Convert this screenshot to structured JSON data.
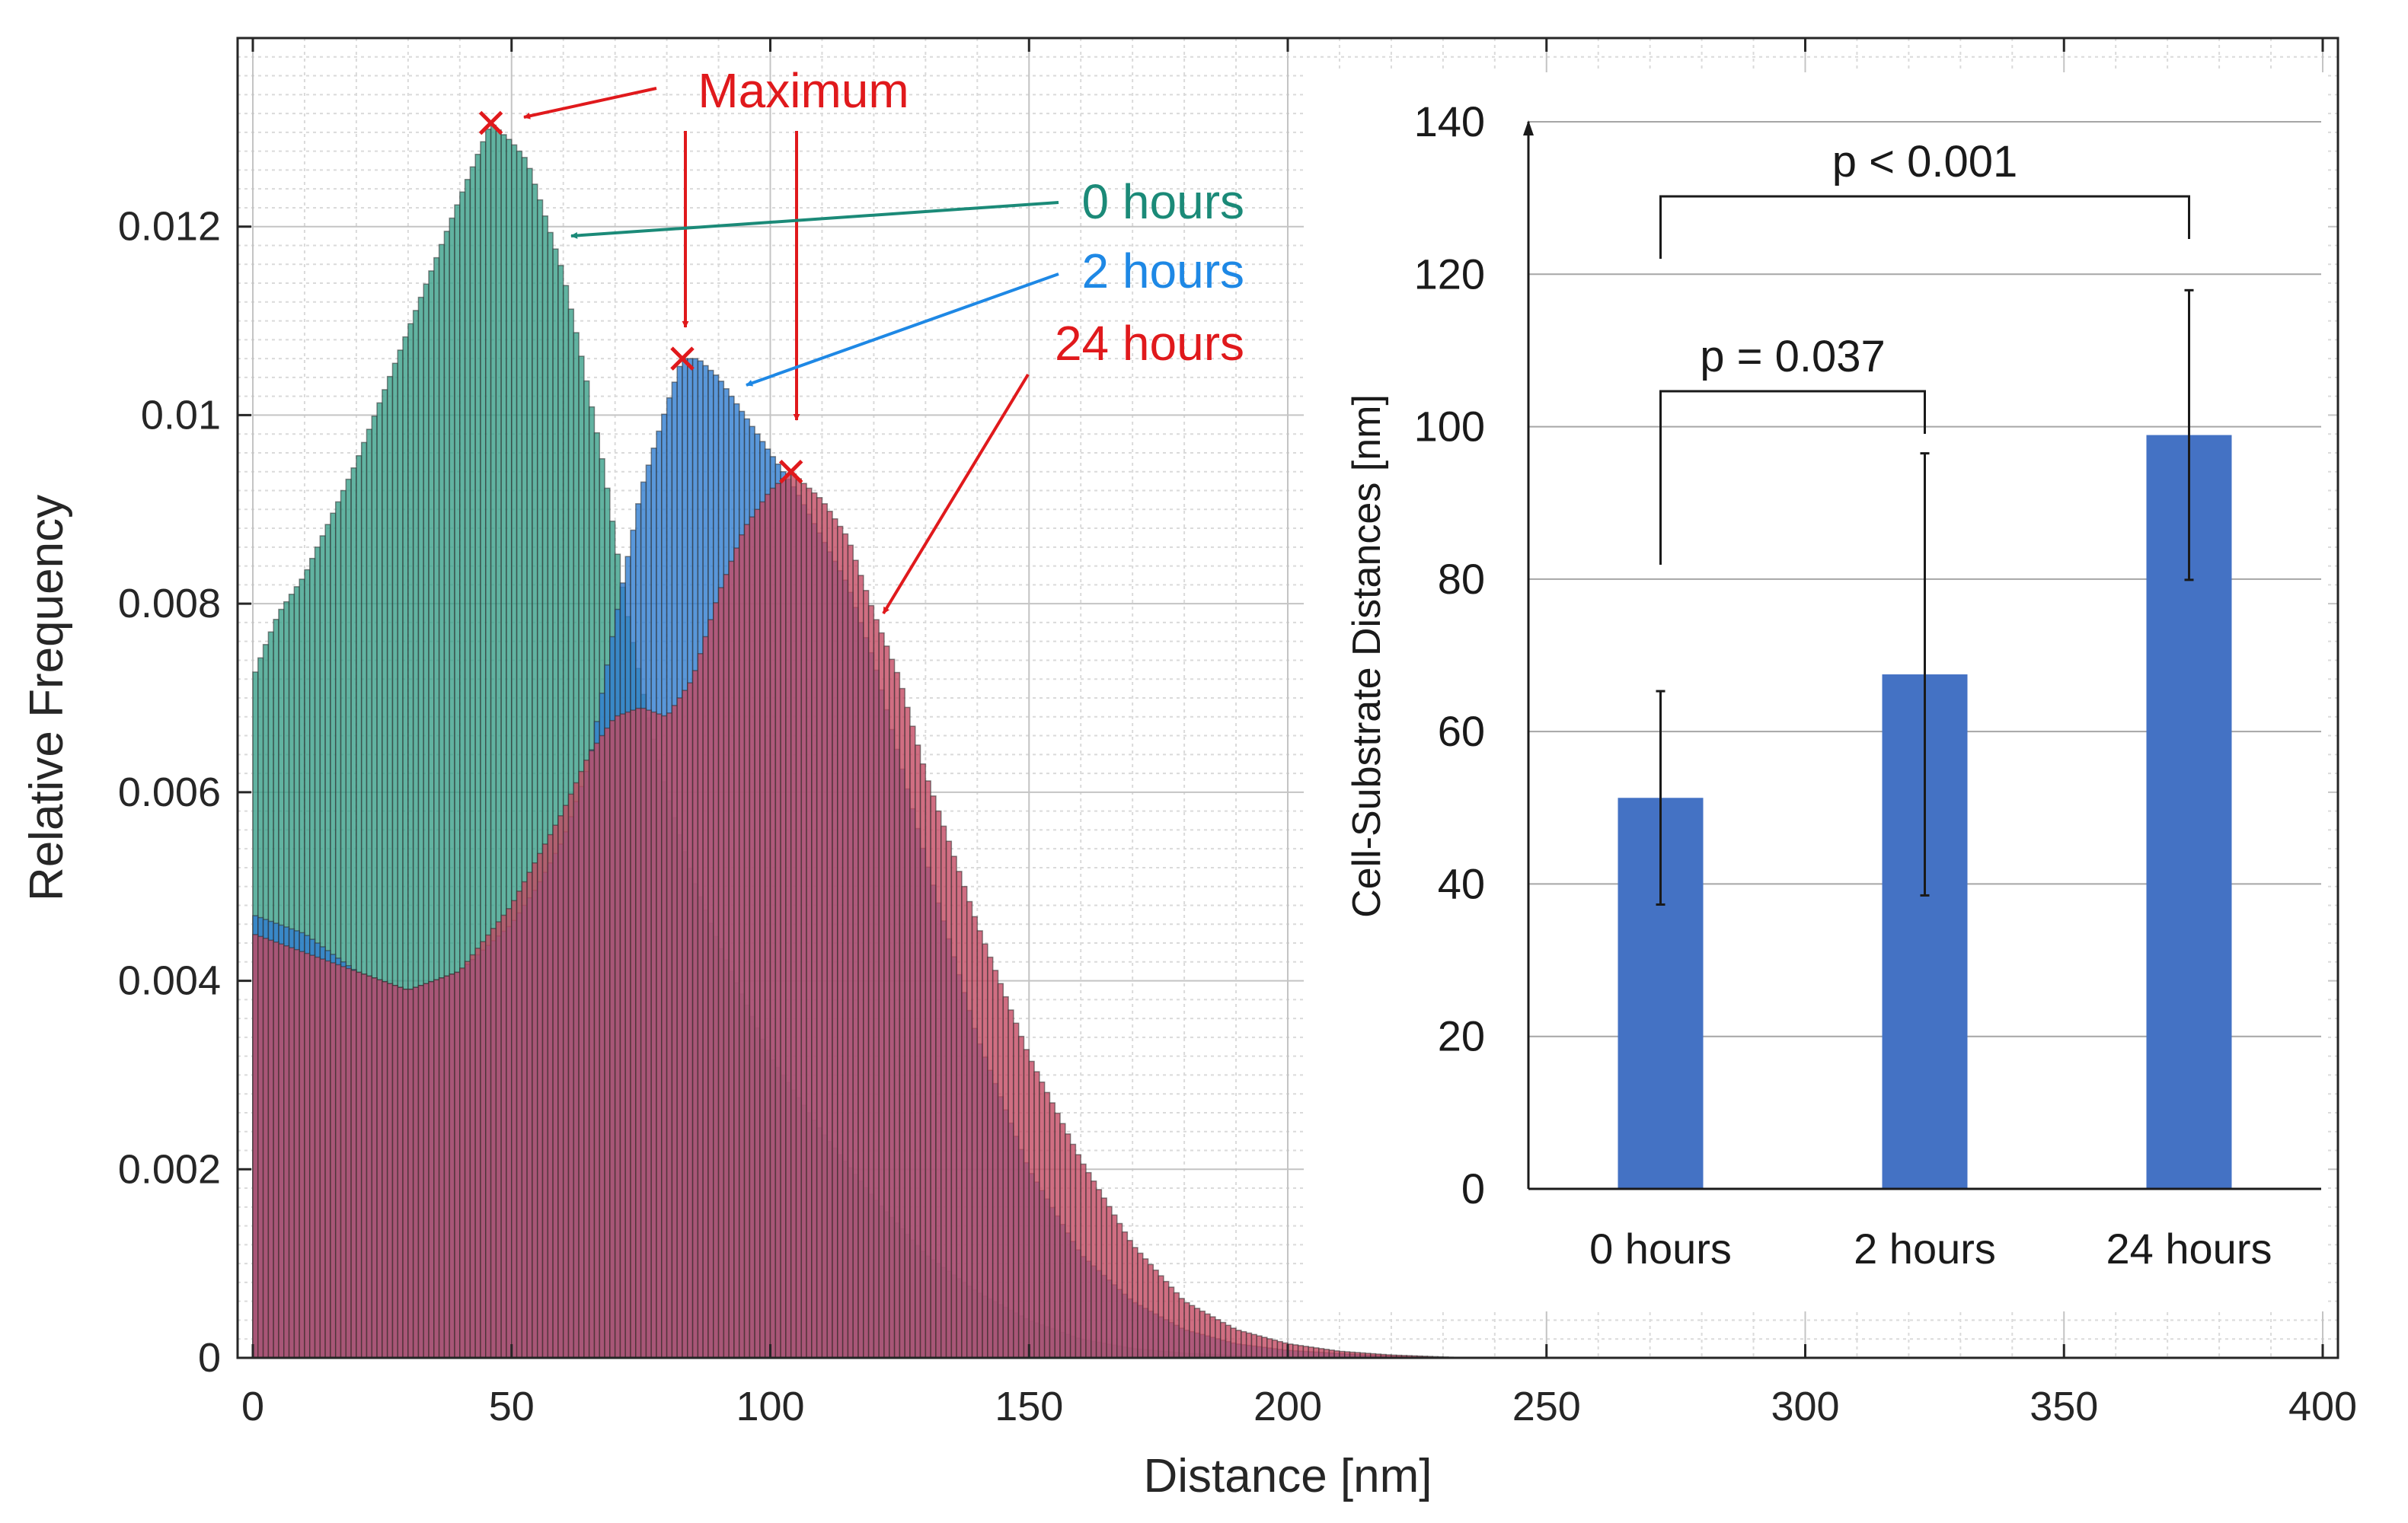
{
  "main_chart": {
    "chart_data": {
      "type": "bar",
      "subtype": "overlaid histogram",
      "xlabel": "Distance [nm]",
      "ylabel": "Relative Frequency",
      "xlim": [
        0,
        400
      ],
      "ylim": [
        0,
        0.014
      ],
      "xticks": [
        "0",
        "50",
        "100",
        "150",
        "200",
        "250",
        "300",
        "350",
        "400"
      ],
      "yticks": [
        "0",
        "0.002",
        "0.004",
        "0.006",
        "0.008",
        "0.01",
        "0.012"
      ],
      "grid": true,
      "bin_width_nm": 1,
      "series": [
        {
          "name": "0 hours",
          "color": "#3aa08a",
          "points": [
            [
              0,
              0.0072
            ],
            [
              2,
              0.0075
            ],
            [
              5,
              0.0079
            ],
            [
              10,
              0.0083
            ],
            [
              15,
              0.0089
            ],
            [
              20,
              0.0095
            ],
            [
              25,
              0.0102
            ],
            [
              30,
              0.0109
            ],
            [
              35,
              0.0116
            ],
            [
              40,
              0.0123
            ],
            [
              43,
              0.0127
            ],
            [
              46,
              0.0131
            ],
            [
              50,
              0.0129
            ],
            [
              53,
              0.0127
            ],
            [
              56,
              0.0122
            ],
            [
              60,
              0.0115
            ],
            [
              64,
              0.0105
            ],
            [
              68,
              0.0094
            ],
            [
              72,
              0.008
            ],
            [
              76,
              0.0069
            ],
            [
              80,
              0.006
            ],
            [
              85,
              0.0051
            ],
            [
              90,
              0.0044
            ],
            [
              95,
              0.0038
            ],
            [
              100,
              0.0032
            ],
            [
              110,
              0.0024
            ],
            [
              120,
              0.0017
            ],
            [
              130,
              0.0011
            ],
            [
              140,
              0.0007
            ],
            [
              150,
              0.0004
            ],
            [
              160,
              0.0002
            ],
            [
              170,
              0.0001
            ],
            [
              180,
              5e-05
            ],
            [
              200,
              0.0
            ]
          ]
        },
        {
          "name": "2 hours",
          "color": "#2f7dd1",
          "points": [
            [
              0,
              0.0047
            ],
            [
              5,
              0.0046
            ],
            [
              10,
              0.0045
            ],
            [
              20,
              0.0041
            ],
            [
              30,
              0.0039
            ],
            [
              40,
              0.0041
            ],
            [
              50,
              0.0046
            ],
            [
              55,
              0.005
            ],
            [
              60,
              0.0055
            ],
            [
              65,
              0.0063
            ],
            [
              70,
              0.0078
            ],
            [
              75,
              0.0092
            ],
            [
              80,
              0.0101
            ],
            [
              83,
              0.0106
            ],
            [
              86,
              0.0106
            ],
            [
              90,
              0.0104
            ],
            [
              95,
              0.01
            ],
            [
              100,
              0.0096
            ],
            [
              105,
              0.0092
            ],
            [
              110,
              0.0087
            ],
            [
              115,
              0.0082
            ],
            [
              120,
              0.0074
            ],
            [
              130,
              0.0053
            ],
            [
              140,
              0.0034
            ],
            [
              150,
              0.002
            ],
            [
              160,
              0.0011
            ],
            [
              170,
              0.0006
            ],
            [
              180,
              0.0003
            ],
            [
              190,
              0.00015
            ],
            [
              200,
              8e-05
            ],
            [
              215,
              3e-05
            ],
            [
              230,
              0.0
            ]
          ]
        },
        {
          "name": "24 hours",
          "color": "#c44a63",
          "points": [
            [
              0,
              0.0045
            ],
            [
              5,
              0.0044
            ],
            [
              10,
              0.0043
            ],
            [
              20,
              0.0041
            ],
            [
              30,
              0.0039
            ],
            [
              40,
              0.0041
            ],
            [
              50,
              0.0048
            ],
            [
              60,
              0.0058
            ],
            [
              65,
              0.0064
            ],
            [
              70,
              0.0068
            ],
            [
              75,
              0.0069
            ],
            [
              80,
              0.0068
            ],
            [
              85,
              0.0072
            ],
            [
              90,
              0.0081
            ],
            [
              95,
              0.0088
            ],
            [
              100,
              0.0092
            ],
            [
              104,
              0.0094
            ],
            [
              110,
              0.0091
            ],
            [
              115,
              0.0087
            ],
            [
              120,
              0.0079
            ],
            [
              125,
              0.0072
            ],
            [
              130,
              0.0062
            ],
            [
              140,
              0.0046
            ],
            [
              150,
              0.0032
            ],
            [
              160,
              0.0021
            ],
            [
              170,
              0.0012
            ],
            [
              180,
              0.0006
            ],
            [
              190,
              0.0003
            ],
            [
              200,
              0.00015
            ],
            [
              210,
              7e-05
            ],
            [
              220,
              3e-05
            ],
            [
              235,
              0.0
            ]
          ]
        }
      ],
      "maxima": [
        {
          "series": "0 hours",
          "x": 46,
          "y": 0.0131
        },
        {
          "series": "2 hours",
          "x": 83,
          "y": 0.0106
        },
        {
          "series": "24 hours",
          "x": 104,
          "y": 0.0094
        }
      ],
      "annotations": {
        "maximum": "Maximum",
        "series_labels": [
          "0 hours",
          "2 hours",
          "24 hours"
        ]
      }
    }
  },
  "inset_chart": {
    "chart_data": {
      "type": "bar",
      "ylabel": "Cell-Substrate Distances [nm]",
      "xlabel": "",
      "ylim": [
        0,
        140
      ],
      "yticks": [
        "0",
        "20",
        "40",
        "60",
        "80",
        "100",
        "120",
        "140"
      ],
      "categories": [
        "0 hours",
        "2 hours",
        "24 hours"
      ],
      "values": [
        51.3,
        67.5,
        98.9
      ],
      "error": [
        14.0,
        29.0,
        19.0
      ],
      "bar_color": "#4472c4",
      "significance": [
        {
          "from": "0 hours",
          "to": "2 hours",
          "label": "p = 0.037"
        },
        {
          "from": "0 hours",
          "to": "24 hours",
          "label": "p < 0.001"
        }
      ]
    }
  }
}
